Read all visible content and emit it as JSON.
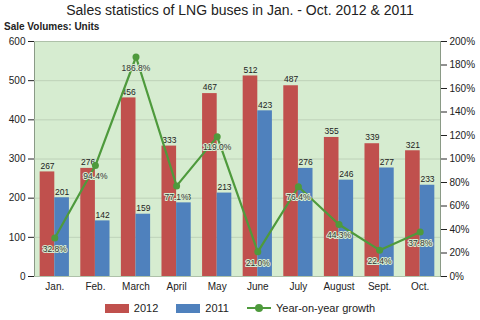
{
  "chart_data": {
    "type": "bar",
    "title": "Sales statistics of LNG buses in Jan. - Oct. 2012 & 2011",
    "y_label": "Sale Volumes: Units",
    "categories": [
      "Jan.",
      "Feb.",
      "March",
      "April",
      "May",
      "June",
      "July",
      "August",
      "Sept.",
      "Oct."
    ],
    "series": [
      {
        "name": "2012",
        "color": "#c0504d",
        "values": [
          267,
          276,
          456,
          333,
          467,
          512,
          487,
          355,
          339,
          321
        ]
      },
      {
        "name": "2011",
        "color": "#4f81bd",
        "values": [
          201,
          142,
          159,
          188,
          213,
          423,
          276,
          246,
          277,
          233
        ]
      },
      {
        "name": "Year-on-year growth",
        "type": "line",
        "axis": "y2",
        "color": "#4e9a3c",
        "marker": "circle",
        "values": [
          32.8,
          94.4,
          186.8,
          77.1,
          119.0,
          21.0,
          76.4,
          44.3,
          22.4,
          37.8
        ],
        "value_labels": [
          "32.8%",
          "94.4%",
          "186.8%",
          "77.1%",
          "119.0%",
          "21.0%",
          "76.4%",
          "44.3%",
          "22.4%",
          "37.8%"
        ]
      }
    ],
    "ylim": [
      0,
      600
    ],
    "yticks": [
      0,
      100,
      200,
      300,
      400,
      500,
      600
    ],
    "y2lim": [
      0,
      200
    ],
    "y2ticks": [
      {
        "value": 0,
        "label": "0%"
      },
      {
        "value": 20,
        "label": "20%"
      },
      {
        "value": 40,
        "label": "40%"
      },
      {
        "value": 60,
        "label": "60%"
      },
      {
        "value": 80,
        "label": "80%"
      },
      {
        "value": 100,
        "label": "100%"
      },
      {
        "value": 120,
        "label": "120%"
      },
      {
        "value": 140,
        "label": "140%"
      },
      {
        "value": 160,
        "label": "160%"
      },
      {
        "value": 180,
        "label": "180%"
      },
      {
        "value": 200,
        "label": "200%"
      }
    ],
    "grid": true,
    "data_labels": true,
    "legend": "bottom"
  }
}
